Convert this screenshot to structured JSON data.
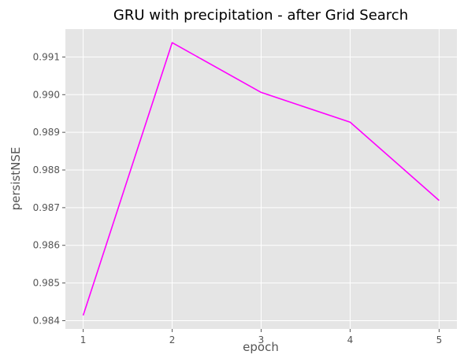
{
  "chart_data": {
    "type": "line",
    "title": "GRU with precipitation - after Grid Search",
    "xlabel": "epoch",
    "ylabel": "persistNSE",
    "x": [
      1,
      2,
      3,
      4,
      5
    ],
    "series": [
      {
        "values": [
          0.98414,
          0.99138,
          0.99006,
          0.98927,
          0.98719
        ]
      }
    ],
    "xlim": [
      0.8,
      5.2
    ],
    "ylim": [
      0.98378,
      0.99174
    ],
    "xticks": [
      "1",
      "2",
      "3",
      "4",
      "5"
    ],
    "yticks": [
      "0.984",
      "0.985",
      "0.986",
      "0.987",
      "0.988",
      "0.989",
      "0.990",
      "0.991"
    ],
    "grid": true,
    "legend": "none",
    "colors": {
      "line": "#ff00ff",
      "plot_background": "#e5e5e5",
      "grid": "#ffffff"
    }
  }
}
